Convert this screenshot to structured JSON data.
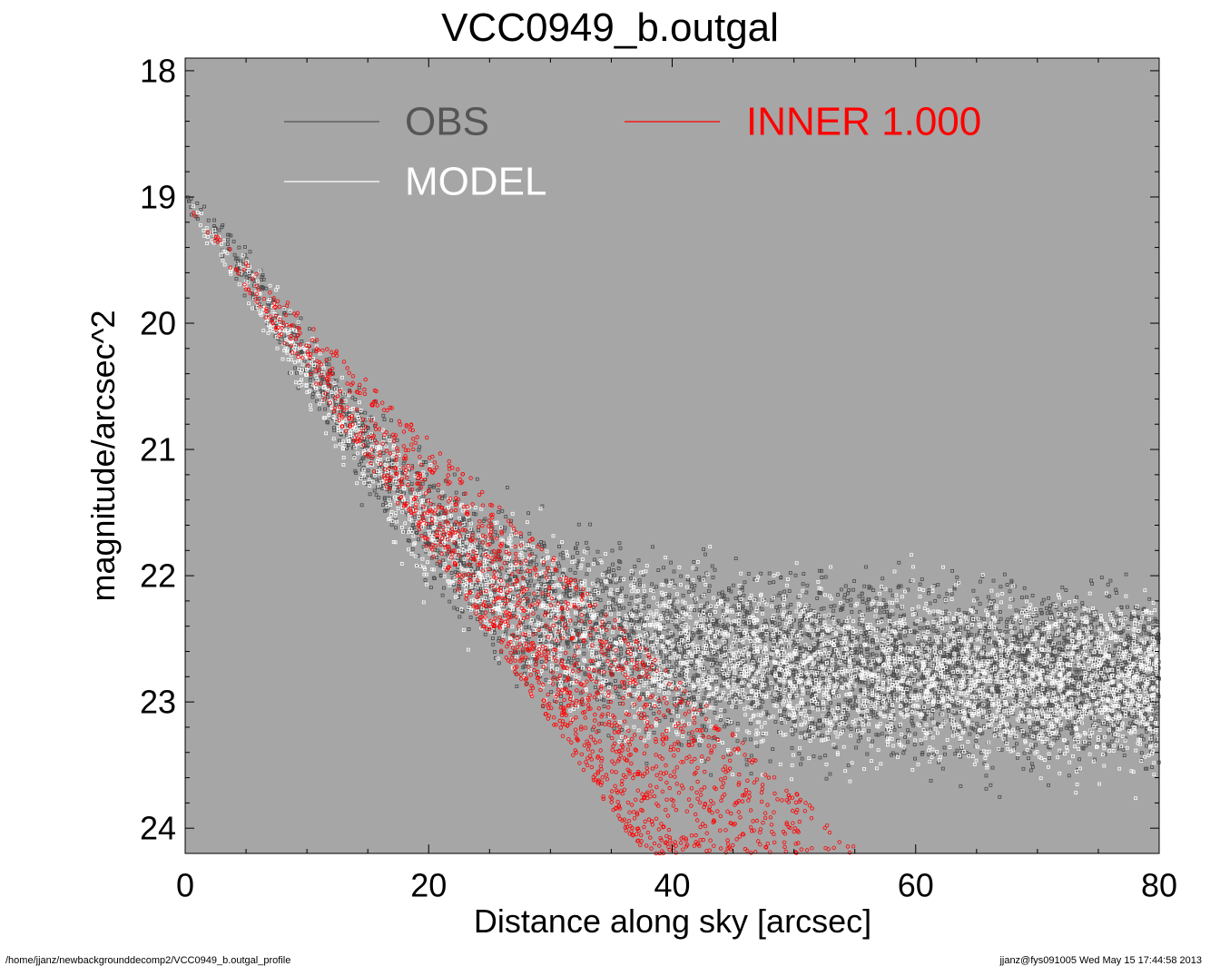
{
  "footer": {
    "path": "/home/jjanz/newbackgrounddecomp2/VCC0949_b.outgal_profile",
    "stamp": "jjanz@fys091005  Wed May 15 17:44:58 2013"
  },
  "chart_data": {
    "type": "scatter",
    "title": "VCC0949_b.outgal",
    "xlabel": "Distance along sky [arcsec]",
    "ylabel": "magnitude/arcsec^2",
    "xlim": [
      0,
      80
    ],
    "ylim": [
      24.2,
      17.9
    ],
    "y_inverted": true,
    "x_ticks": [
      "0",
      "20",
      "40",
      "60",
      "80"
    ],
    "y_ticks": [
      "18",
      "19",
      "20",
      "21",
      "22",
      "23",
      "24"
    ],
    "background_color": "#a6a6a6",
    "grid": false,
    "legend": [
      {
        "name": "OBS",
        "color": "#555555",
        "position": "top-left"
      },
      {
        "name": "MODEL",
        "color": "#ffffff",
        "position": "top-left"
      },
      {
        "name": "INNER  1.000",
        "color": "#ff0000",
        "position": "top-center"
      }
    ],
    "series": [
      {
        "name": "OBS",
        "color": "#4a4a4a",
        "marker": "open-square",
        "trend_x": [
          0,
          5,
          10,
          15,
          20,
          25,
          30,
          35,
          40,
          50,
          60,
          70,
          80
        ],
        "trend_y": [
          19.0,
          19.6,
          20.3,
          21.0,
          21.6,
          22.0,
          22.3,
          22.5,
          22.6,
          22.7,
          22.75,
          22.8,
          22.8
        ]
      },
      {
        "name": "MODEL",
        "color": "#ffffff",
        "marker": "open-square",
        "trend_x": [
          0,
          5,
          10,
          15,
          20,
          25,
          30,
          35,
          40,
          50,
          60,
          70,
          80
        ],
        "trend_y": [
          19.05,
          19.65,
          20.35,
          21.05,
          21.65,
          22.05,
          22.35,
          22.55,
          22.65,
          22.75,
          22.8,
          22.85,
          22.85
        ]
      },
      {
        "name": "INNER  1.000",
        "color": "#ff0000",
        "marker": "open-circle",
        "band_lower_x": [
          0,
          37.5
        ],
        "band_lower_y": [
          19.05,
          24.2
        ],
        "band_upper_x": [
          0,
          55.5
        ],
        "band_upper_y": [
          19.05,
          24.2
        ]
      }
    ]
  }
}
